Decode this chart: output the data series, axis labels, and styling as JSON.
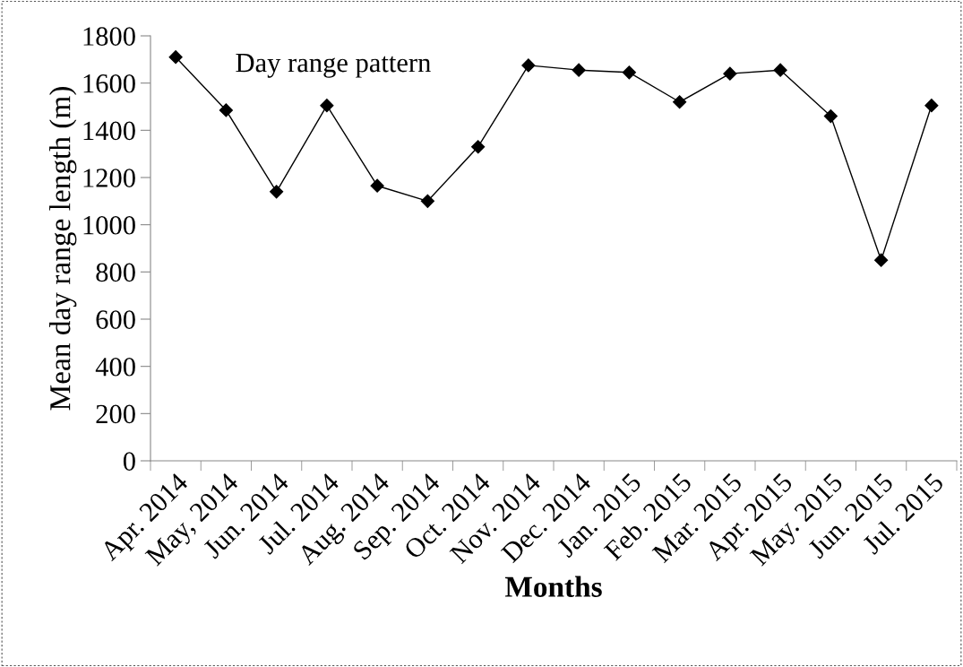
{
  "chart_data": {
    "type": "line",
    "xlabel": "Months",
    "ylabel": "Mean day range length (m)",
    "annotations": [
      "Day range pattern"
    ],
    "categories": [
      "Apr. 2014",
      "May, 2014",
      "Jun. 2014",
      "Jul. 2014",
      "Aug. 2014",
      "Sep. 2014",
      "Oct. 2014",
      "Nov. 2014",
      "Dec. 2014",
      "Jan. 2015",
      "Feb. 2015",
      "Mar. 2015",
      "Apr. 2015",
      "May. 2015",
      "Jun. 2015",
      "Jul. 2015"
    ],
    "series": [
      {
        "color": "#000000",
        "values": [
          1710,
          1485,
          1140,
          1505,
          1165,
          1100,
          1330,
          1675,
          1655,
          1645,
          1520,
          1640,
          1655,
          1460,
          850,
          1505
        ]
      }
    ],
    "ylim": [
      0,
      1800
    ],
    "yticks": [
      0,
      200,
      400,
      600,
      800,
      1000,
      1200,
      1400,
      1600,
      1800
    ],
    "grid": false,
    "legend": false,
    "marker": "diamond",
    "line_style": "solid"
  }
}
